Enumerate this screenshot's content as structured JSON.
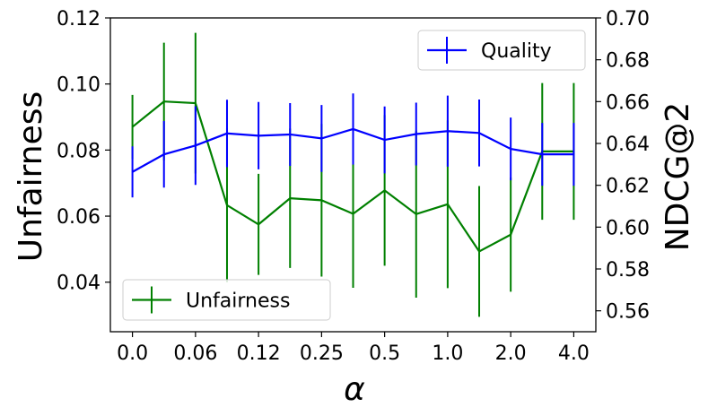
{
  "chart_data": {
    "type": "line",
    "xlabel": "α",
    "ylabel_left": "Unfairness",
    "ylabel_right": "NDCG@2",
    "x_tick_labels": [
      "0.0",
      "0.06",
      "0.12",
      "0.25",
      "0.5",
      "1.0",
      "2.0",
      "4.0"
    ],
    "x": [
      0,
      1,
      2,
      3,
      4,
      5,
      6,
      7,
      8,
      9,
      10,
      11,
      12,
      13,
      14
    ],
    "x_tick_positions": [
      0,
      2,
      4,
      6,
      8,
      10,
      12,
      14
    ],
    "xlim": [
      -0.7,
      14.7
    ],
    "ylim_left": [
      0.025,
      0.12
    ],
    "ylim_right": [
      0.55,
      0.7
    ],
    "left_ticks": [
      "0.04",
      "0.06",
      "0.08",
      "0.10",
      "0.12"
    ],
    "right_ticks": [
      "0.56",
      "0.58",
      "0.60",
      "0.62",
      "0.64",
      "0.66",
      "0.68",
      "0.70"
    ],
    "series": [
      {
        "name": "Unfairness",
        "axis": "left",
        "color": "#008000",
        "values": [
          0.087,
          0.0947,
          0.0942,
          0.0633,
          0.0575,
          0.0654,
          0.0648,
          0.0607,
          0.0678,
          0.0606,
          0.0636,
          0.0493,
          0.0544,
          0.0796,
          0.0796
        ],
        "errors": [
          0.0097,
          0.0178,
          0.0213,
          0.0233,
          0.0153,
          0.0211,
          0.0231,
          0.0224,
          0.0228,
          0.0253,
          0.0254,
          0.0198,
          0.0173,
          0.0207,
          0.0207
        ]
      },
      {
        "name": "Quality",
        "axis": "right",
        "color": "#0000ff",
        "values": [
          0.6264,
          0.6348,
          0.639,
          0.6448,
          0.6437,
          0.6443,
          0.6424,
          0.6469,
          0.6417,
          0.6445,
          0.6459,
          0.645,
          0.6374,
          0.6348,
          0.6348
        ],
        "errors": [
          0.0122,
          0.0159,
          0.0188,
          0.0161,
          0.0161,
          0.015,
          0.016,
          0.017,
          0.016,
          0.015,
          0.017,
          0.016,
          0.015,
          0.015,
          0.015
        ]
      }
    ],
    "legend": [
      {
        "label": "Quality",
        "color": "#0000ff",
        "position": "top-right"
      },
      {
        "label": "Unfairness",
        "color": "#008000",
        "position": "bottom-left"
      }
    ],
    "grid": false
  }
}
